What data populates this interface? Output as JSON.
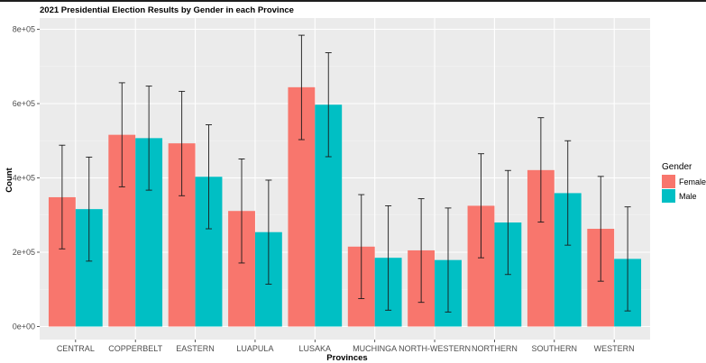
{
  "chart_data": {
    "type": "bar",
    "title": "2021 Presidential Election Results by Gender in each Province",
    "xlabel": "Provinces",
    "ylabel": "Count",
    "categories": [
      "CENTRAL",
      "COPPERBELT",
      "EASTERN",
      "LUAPULA",
      "LUSAKA",
      "MUCHINGA",
      "NORTH-WESTERN",
      "NORTHERN",
      "SOUTHERN",
      "WESTERN"
    ],
    "ylim": [
      0,
      820000
    ],
    "yticks": [
      0,
      200000,
      400000,
      600000,
      800000
    ],
    "ytick_labels": [
      "0e+00",
      "2e+05",
      "4e+05",
      "6e+05",
      "8e+05"
    ],
    "grid": true,
    "legend": {
      "title": "Gender",
      "position": "right"
    },
    "series": [
      {
        "name": "Female",
        "color": "#F8766D",
        "values": [
          348000,
          516000,
          493000,
          311000,
          644000,
          215000,
          205000,
          325000,
          421000,
          263000
        ],
        "error_low": [
          209000,
          376000,
          352000,
          171000,
          503000,
          75000,
          65000,
          185000,
          281000,
          122000
        ],
        "error_high": [
          488000,
          656000,
          633000,
          451000,
          784000,
          355000,
          344000,
          465000,
          562000,
          404000
        ]
      },
      {
        "name": "Male",
        "color": "#00BFC4",
        "values": [
          316000,
          507000,
          403000,
          254000,
          597000,
          185000,
          179000,
          280000,
          359000,
          182000
        ],
        "error_low": [
          176000,
          367000,
          263000,
          114000,
          457000,
          44000,
          39000,
          140000,
          219000,
          42000
        ],
        "error_high": [
          456000,
          647000,
          543000,
          394000,
          737000,
          325000,
          319000,
          420000,
          500000,
          322000
        ]
      }
    ]
  }
}
